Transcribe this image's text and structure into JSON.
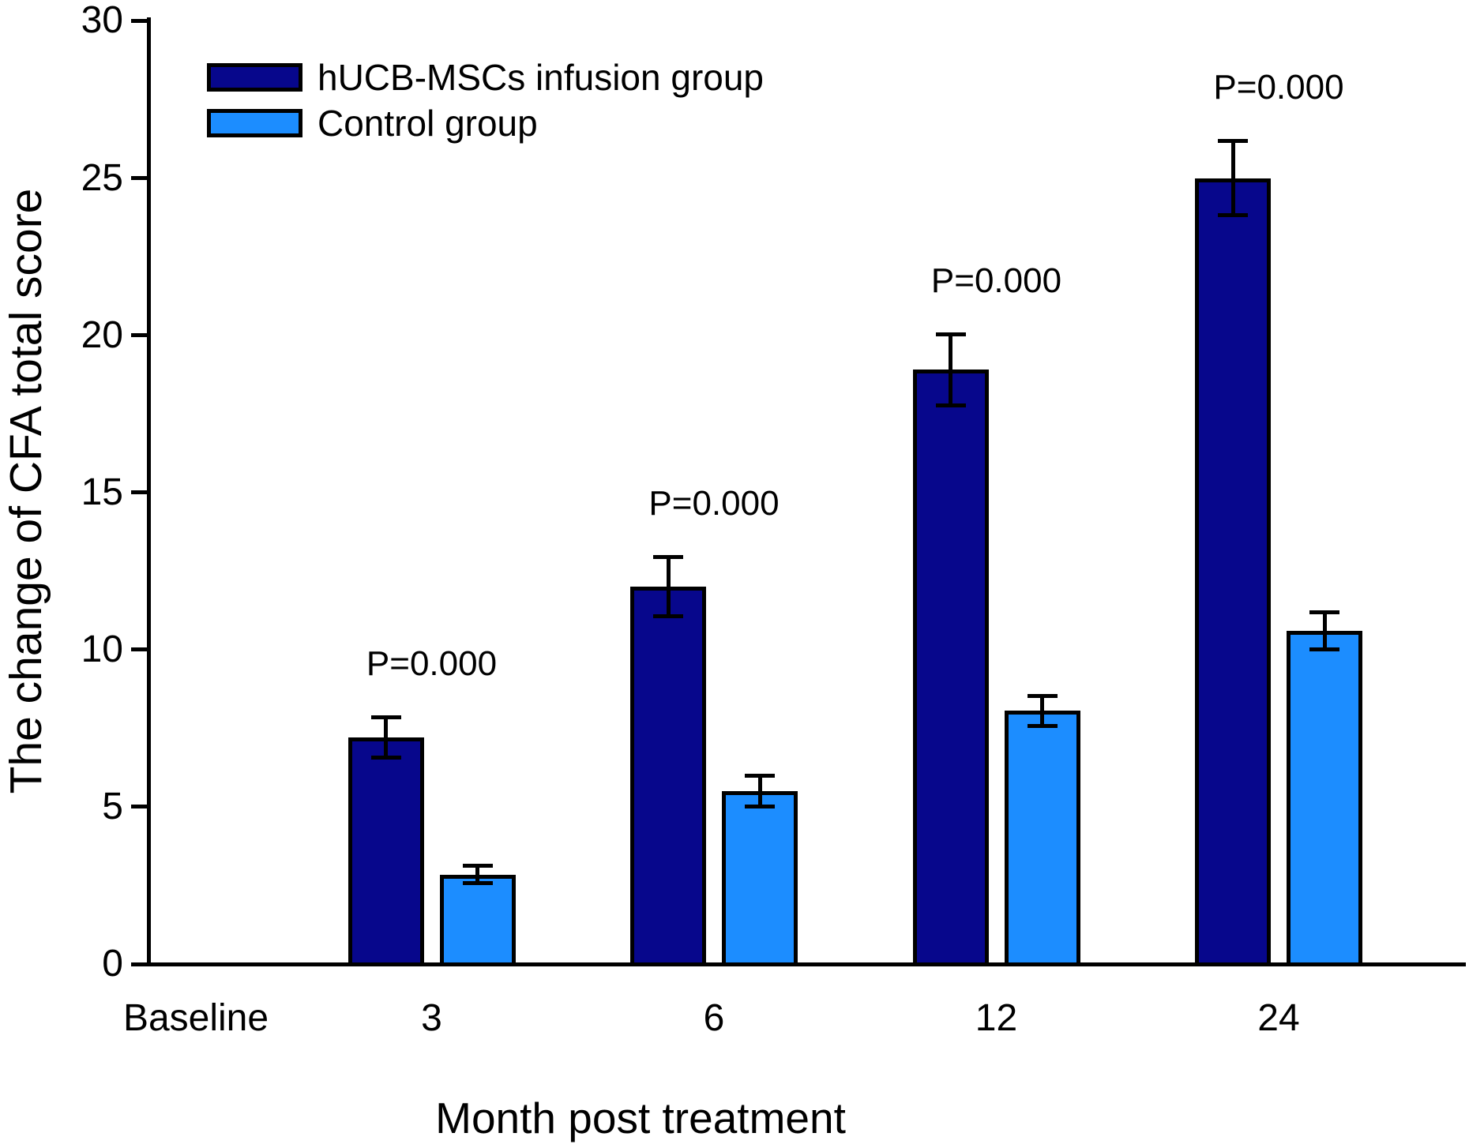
{
  "figure": {
    "background_color": "#ffffff",
    "text_color": "#000000"
  },
  "chart_data": {
    "type": "bar",
    "title": "",
    "xlabel": "Month post treatment",
    "ylabel": "The change of CFA total score",
    "categories": [
      "Baseline",
      "3",
      "6",
      "12",
      "24"
    ],
    "ylim": [
      0,
      30
    ],
    "y_ticks": [
      0,
      5,
      10,
      15,
      20,
      25,
      30
    ],
    "grid": "off",
    "legend_position": "top-left-inside",
    "error_bars": "plus-minus",
    "series": [
      {
        "name": "hUCB-MSCs infusion group",
        "color": "#07078C",
        "values": [
          null,
          7.2,
          12.0,
          18.9,
          25.0
        ],
        "errors": [
          null,
          0.7,
          1.0,
          1.2,
          1.25
        ]
      },
      {
        "name": "Control group",
        "color": "#1C8DFF",
        "values": [
          null,
          2.85,
          5.5,
          8.05,
          10.6
        ],
        "errors": [
          null,
          0.35,
          0.55,
          0.55,
          0.65
        ]
      }
    ],
    "annotations": [
      {
        "category": "3",
        "text": "P=0.000"
      },
      {
        "category": "6",
        "text": "P=0.000"
      },
      {
        "category": "12",
        "text": "P=0.000"
      },
      {
        "category": "24",
        "text": "P=0.000"
      }
    ]
  }
}
